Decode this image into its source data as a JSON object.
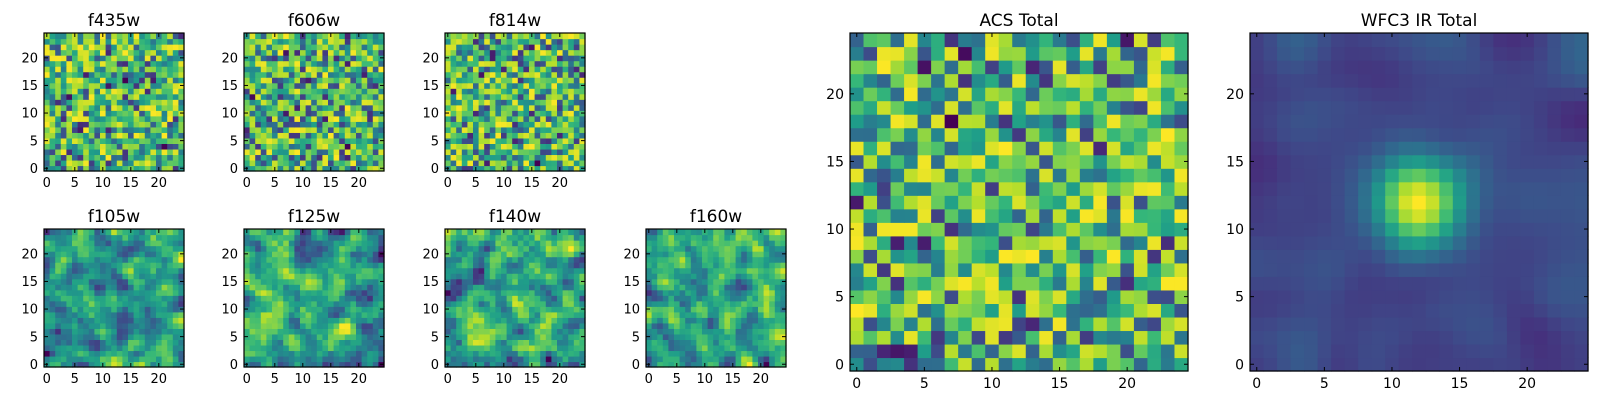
{
  "chart_data": [
    {
      "type": "heatmap",
      "title": "f435w",
      "colormap": "viridis",
      "grid_size": 25,
      "xlim": [
        0,
        24
      ],
      "ylim": [
        0,
        24
      ],
      "x_ticks": [
        0,
        5,
        10,
        15,
        20
      ],
      "y_ticks": [
        0,
        5,
        10,
        15,
        20
      ],
      "pattern": "uniform-noise",
      "seed": 11
    },
    {
      "type": "heatmap",
      "title": "f606w",
      "colormap": "viridis",
      "grid_size": 25,
      "xlim": [
        0,
        24
      ],
      "ylim": [
        0,
        24
      ],
      "x_ticks": [
        0,
        5,
        10,
        15,
        20
      ],
      "y_ticks": [
        0,
        5,
        10,
        15,
        20
      ],
      "pattern": "uniform-noise",
      "seed": 23
    },
    {
      "type": "heatmap",
      "title": "f814w",
      "colormap": "viridis",
      "grid_size": 25,
      "xlim": [
        0,
        24
      ],
      "ylim": [
        0,
        24
      ],
      "x_ticks": [
        0,
        5,
        10,
        15,
        20
      ],
      "y_ticks": [
        0,
        5,
        10,
        15,
        20
      ],
      "pattern": "uniform-noise",
      "seed": 37
    },
    {
      "type": "heatmap",
      "title": "f105w",
      "colormap": "viridis",
      "grid_size": 25,
      "xlim": [
        0,
        24
      ],
      "ylim": [
        0,
        24
      ],
      "x_ticks": [
        0,
        5,
        10,
        15,
        20
      ],
      "y_ticks": [
        0,
        5,
        10,
        15,
        20
      ],
      "pattern": "smooth-noise",
      "seed": 41
    },
    {
      "type": "heatmap",
      "title": "f125w",
      "colormap": "viridis",
      "grid_size": 25,
      "xlim": [
        0,
        24
      ],
      "ylim": [
        0,
        24
      ],
      "x_ticks": [
        0,
        5,
        10,
        15,
        20
      ],
      "y_ticks": [
        0,
        5,
        10,
        15,
        20
      ],
      "pattern": "smooth-noise",
      "seed": 53
    },
    {
      "type": "heatmap",
      "title": "f140w",
      "colormap": "viridis",
      "grid_size": 25,
      "xlim": [
        0,
        24
      ],
      "ylim": [
        0,
        24
      ],
      "x_ticks": [
        0,
        5,
        10,
        15,
        20
      ],
      "y_ticks": [
        0,
        5,
        10,
        15,
        20
      ],
      "pattern": "smooth-noise",
      "seed": 67
    },
    {
      "type": "heatmap",
      "title": "f160w",
      "colormap": "viridis",
      "grid_size": 25,
      "xlim": [
        0,
        24
      ],
      "ylim": [
        0,
        24
      ],
      "x_ticks": [
        0,
        5,
        10,
        15,
        20
      ],
      "y_ticks": [
        0,
        5,
        10,
        15,
        20
      ],
      "pattern": "smooth-noise",
      "seed": 79
    },
    {
      "type": "heatmap",
      "title": "ACS Total",
      "colormap": "viridis",
      "grid_size": 25,
      "xlim": [
        0,
        24
      ],
      "ylim": [
        0,
        24
      ],
      "x_ticks": [
        0,
        5,
        10,
        15,
        20
      ],
      "y_ticks": [
        0,
        5,
        10,
        15,
        20
      ],
      "pattern": "uniform-noise",
      "seed": 97
    },
    {
      "type": "heatmap",
      "title": "WFC3 IR Total",
      "colormap": "viridis",
      "grid_size": 25,
      "xlim": [
        0,
        24
      ],
      "ylim": [
        0,
        24
      ],
      "x_ticks": [
        0,
        5,
        10,
        15,
        20
      ],
      "y_ticks": [
        0,
        5,
        10,
        15,
        20
      ],
      "pattern": "central-source",
      "source_center": [
        12,
        12
      ],
      "seed": 113
    }
  ]
}
